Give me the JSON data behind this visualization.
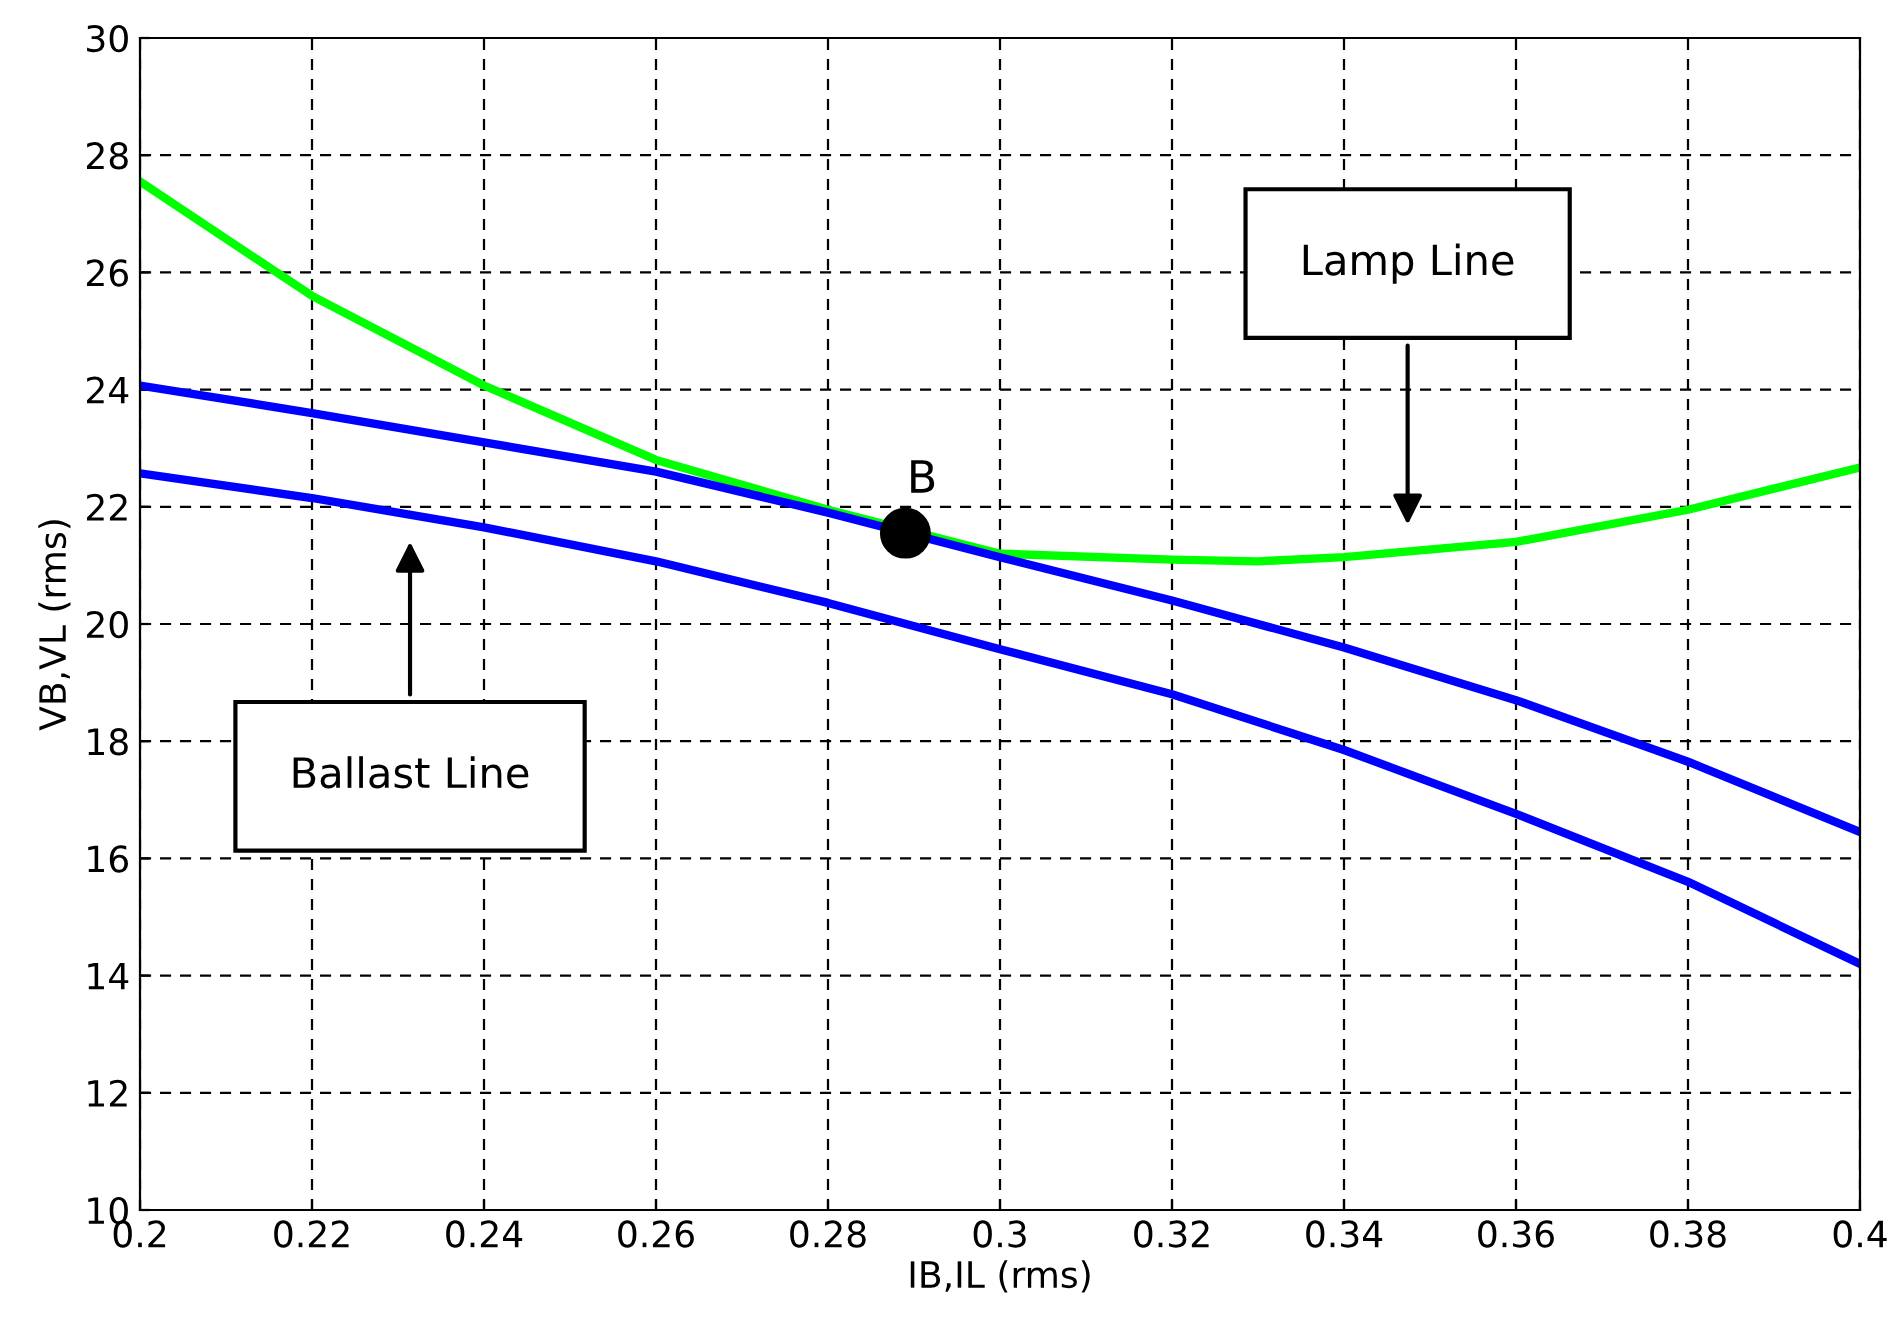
{
  "chart_data": {
    "type": "line",
    "xlabel": "IB,IL (rms)",
    "ylabel": "VB,VL (rms)",
    "xlim": [
      0.2,
      0.4
    ],
    "xticks": [
      0.2,
      0.22,
      0.24,
      0.26,
      0.28,
      0.3,
      0.32,
      0.34,
      0.36,
      0.38,
      0.4
    ],
    "ylim": [
      10,
      30
    ],
    "yticks": [
      10,
      12,
      14,
      16,
      18,
      20,
      22,
      24,
      26,
      28,
      30
    ],
    "grid": true,
    "marker": "none",
    "line_style": "solid",
    "series": [
      {
        "color": "#00ff00",
        "x": [
          0.2,
          0.22,
          0.24,
          0.26,
          0.28,
          0.3,
          0.32,
          0.33,
          0.34,
          0.36,
          0.38,
          0.4
        ],
        "values": [
          27.55,
          25.6,
          24.07,
          22.8,
          21.95,
          21.2,
          21.1,
          21.07,
          21.14,
          21.4,
          21.95,
          22.67
        ]
      },
      {
        "color": "#0000ff",
        "x": [
          0.2,
          0.22,
          0.24,
          0.26,
          0.28,
          0.3,
          0.32,
          0.34,
          0.36,
          0.38,
          0.4
        ],
        "values": [
          24.07,
          23.6,
          23.1,
          22.6,
          21.9,
          21.14,
          20.4,
          19.6,
          18.7,
          17.65,
          16.45
        ]
      },
      {
        "color": "#0000ff",
        "x": [
          0.2,
          0.22,
          0.24,
          0.26,
          0.28,
          0.3,
          0.32,
          0.34,
          0.36,
          0.38,
          0.4
        ],
        "values": [
          22.57,
          22.15,
          21.65,
          21.07,
          20.36,
          19.57,
          18.8,
          17.85,
          16.76,
          15.6,
          14.2
        ]
      },
      {
        "type": "scatter",
        "marker": "circle",
        "color": "#000000",
        "x": [
          0.289
        ],
        "values": [
          21.55
        ]
      }
    ],
    "annotations": [
      "Lamp Line",
      "Ballast Line",
      {
        "text": "B",
        "x": 0.289,
        "y": 21.55
      }
    ]
  }
}
